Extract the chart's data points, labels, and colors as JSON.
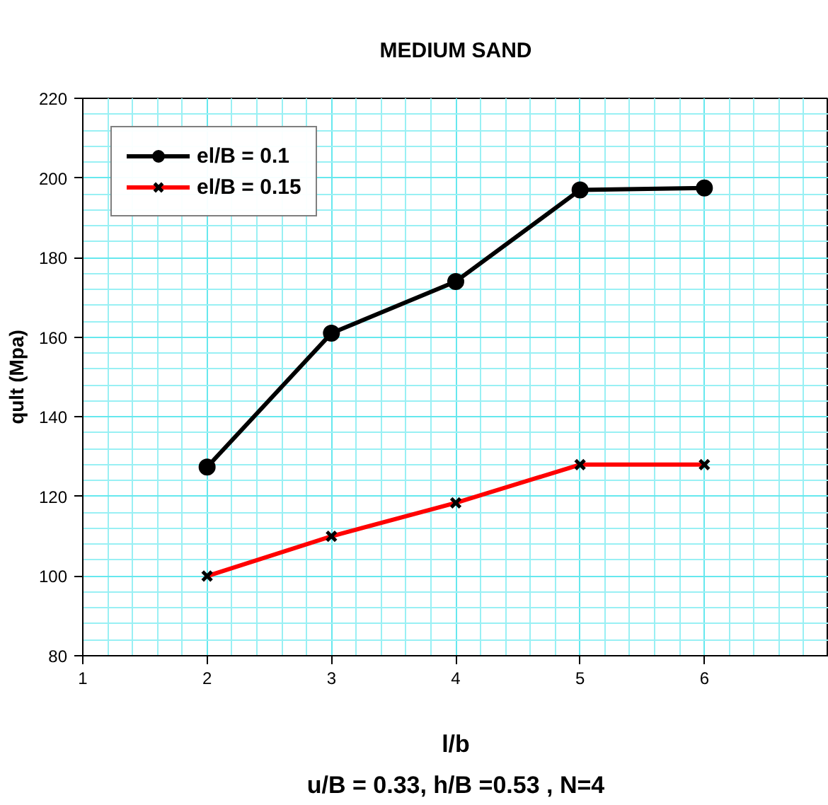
{
  "chart_data": {
    "type": "line",
    "title": "MEDIUM SAND",
    "xlabel": "l/b",
    "ylabel": "qult (Mpa)",
    "annotations": [
      "u/B = 0.33, h/B =0.53 , N=4"
    ],
    "x": [
      2,
      3,
      4,
      5,
      6
    ],
    "series": [
      {
        "name": "el/B = 0.1",
        "color": "#000000",
        "marker": "circle",
        "values": [
          127.4,
          161,
          174,
          197,
          197.5
        ]
      },
      {
        "name": "el/B = 0.15",
        "color": "#ff0000",
        "marker": "cross",
        "values": [
          100,
          110,
          118.4,
          128,
          128
        ]
      }
    ],
    "xlim": [
      1,
      7
    ],
    "xticks": [
      1,
      {
        "value": 1.2,
        "label": null
      },
      {
        "value": 1.4,
        "label": null
      },
      {
        "value": 1.6,
        "label": null
      },
      {
        "value": 1.8,
        "label": null
      },
      2,
      {
        "value": 2.2,
        "label": null
      },
      {
        "value": 2.4,
        "label": null
      },
      {
        "value": 2.6,
        "label": null
      },
      {
        "value": 2.8,
        "label": null
      },
      3,
      {
        "value": 3.2,
        "label": null
      },
      {
        "value": 3.4,
        "label": null
      },
      {
        "value": 3.6,
        "label": null
      },
      {
        "value": 3.8,
        "label": null
      },
      4,
      {
        "value": 4.2,
        "label": null
      },
      {
        "value": 4.4,
        "label": null
      },
      {
        "value": 4.6,
        "label": null
      },
      {
        "value": 4.8,
        "label": null
      },
      5,
      {
        "value": 5.2,
        "label": null
      },
      {
        "value": 5.4,
        "label": null
      },
      {
        "value": 5.6,
        "label": null
      },
      {
        "value": 5.8,
        "label": null
      },
      6,
      {
        "value": 6.2,
        "label": null
      },
      {
        "value": 6.4,
        "label": null
      },
      {
        "value": 6.6,
        "label": null
      },
      {
        "value": 6.8,
        "label": null
      }
    ],
    "ylim": [
      80,
      220
    ],
    "yticks": [
      80,
      {
        "value": 84,
        "label": null
      },
      {
        "value": 88,
        "label": null
      },
      {
        "value": 92,
        "label": null
      },
      {
        "value": 96,
        "label": null
      },
      100,
      {
        "value": 104,
        "label": null
      },
      {
        "value": 108,
        "label": null
      },
      {
        "value": 112,
        "label": null
      },
      {
        "value": 116,
        "label": null
      },
      120,
      {
        "value": 124,
        "label": null
      },
      {
        "value": 128,
        "label": null
      },
      {
        "value": 132,
        "label": null
      },
      {
        "value": 136,
        "label": null
      },
      140,
      {
        "value": 144,
        "label": null
      },
      {
        "value": 148,
        "label": null
      },
      {
        "value": 152,
        "label": null
      },
      {
        "value": 156,
        "label": null
      },
      160,
      {
        "value": 164,
        "label": null
      },
      {
        "value": 168,
        "label": null
      },
      {
        "value": 172,
        "label": null
      },
      {
        "value": 176,
        "label": null
      },
      180,
      {
        "value": 184,
        "label": null
      },
      {
        "value": 188,
        "label": null
      },
      {
        "value": 192,
        "label": null
      },
      {
        "value": 196,
        "label": null
      },
      200,
      {
        "value": 204,
        "label": null
      },
      {
        "value": 208,
        "label": null
      },
      {
        "value": 212,
        "label": null
      },
      {
        "value": 216,
        "label": null
      },
      220
    ],
    "grid": true,
    "legend": "top left",
    "line_style": "solid"
  }
}
